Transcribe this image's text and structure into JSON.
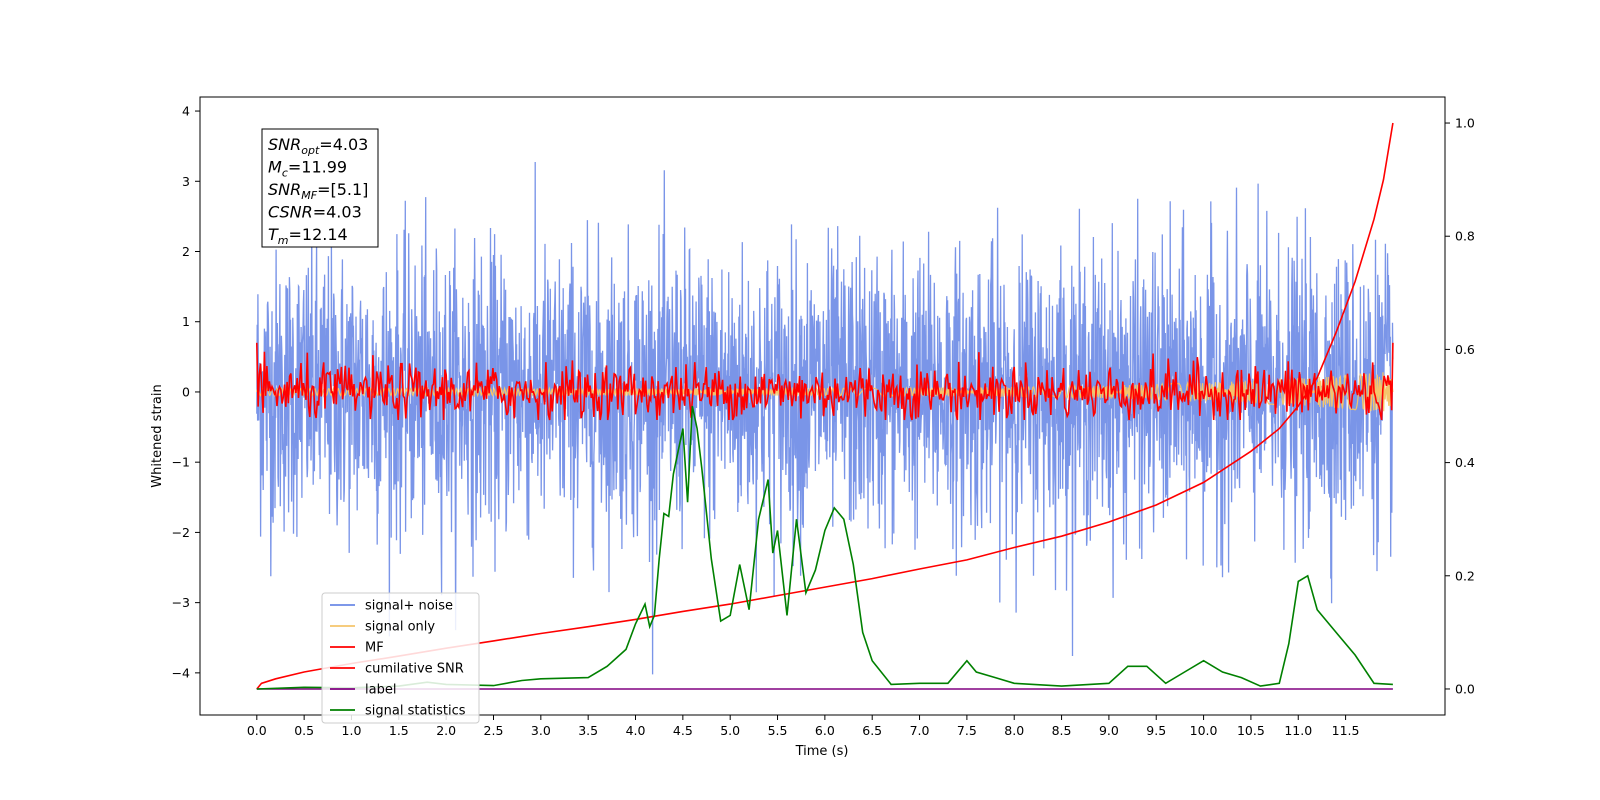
{
  "chart_data": {
    "type": "line",
    "xlabel": "Time (s)",
    "ylabel_left": "Whitened strain",
    "ylabel_right": "",
    "xlim": [
      -0.6,
      12.55
    ],
    "ylim_left": [
      -4.6,
      4.2
    ],
    "ylim_right": [
      -0.046,
      1.046
    ],
    "x_ticks": [
      "0.0",
      "0.5",
      "1.0",
      "1.5",
      "2.0",
      "2.5",
      "3.0",
      "3.5",
      "4.0",
      "4.5",
      "5.0",
      "5.5",
      "6.0",
      "6.5",
      "7.0",
      "7.5",
      "8.0",
      "8.5",
      "9.0",
      "9.5",
      "10.0",
      "10.5",
      "11.0",
      "11.5"
    ],
    "y_ticks_left": [
      "4",
      "3",
      "2",
      "1",
      "0",
      "−1",
      "−2",
      "−3",
      "−4"
    ],
    "y_ticks_right": [
      "1.0",
      "0.8",
      "0.6",
      "0.4",
      "0.2",
      "0.0"
    ],
    "grid": false,
    "legend_position": "lower-left",
    "info_box": {
      "lines": [
        {
          "var": "SNR",
          "sub": "opt",
          "value": "=4.03"
        },
        {
          "var": "M",
          "sub": "c",
          "value": "=11.99"
        },
        {
          "var": "SNR",
          "sub": "MF",
          "value": "=[5.1]"
        },
        {
          "var": "CSNR",
          "sub": "",
          "value": "=4.03"
        },
        {
          "var": "T",
          "sub": "m",
          "value": "=12.14"
        }
      ]
    },
    "series": [
      {
        "name": "signal+ noise",
        "color": "#6b8ae6",
        "axis": "left",
        "style": "noise",
        "x_range": [
          0.0,
          12.0
        ],
        "std": 1.0
      },
      {
        "name": "signal only",
        "color": "#f5c56b",
        "axis": "left",
        "style": "chirp",
        "x_range": [
          0.0,
          12.0
        ],
        "amp_start": 0.05,
        "amp_end": 0.3
      },
      {
        "name": "MF",
        "color": "#ff0000",
        "axis": "left",
        "style": "mf",
        "x_range": [
          0.0,
          12.0
        ],
        "start_value": 0.9,
        "end_value": 1.0,
        "std": 0.2
      },
      {
        "name": "cumilative SNR",
        "color": "#ff0000",
        "axis": "right",
        "x": [
          0.0,
          0.05,
          0.2,
          0.5,
          1.0,
          1.5,
          2.0,
          2.5,
          3.0,
          3.5,
          4.0,
          4.5,
          5.0,
          5.5,
          6.0,
          6.5,
          7.0,
          7.5,
          8.0,
          8.5,
          9.0,
          9.5,
          10.0,
          10.5,
          10.8,
          11.0,
          11.2,
          11.4,
          11.6,
          11.8,
          11.9,
          12.0
        ],
        "y": [
          0.0,
          0.01,
          0.018,
          0.03,
          0.045,
          0.058,
          0.072,
          0.085,
          0.098,
          0.11,
          0.123,
          0.137,
          0.15,
          0.165,
          0.18,
          0.195,
          0.212,
          0.228,
          0.25,
          0.27,
          0.295,
          0.325,
          0.365,
          0.42,
          0.46,
          0.5,
          0.55,
          0.63,
          0.72,
          0.83,
          0.9,
          1.0
        ]
      },
      {
        "name": "label",
        "color": "#800080",
        "axis": "right",
        "x": [
          0.0,
          12.0
        ],
        "y": [
          0.0,
          0.0
        ]
      },
      {
        "name": "signal statistics",
        "color": "#008000",
        "axis": "right",
        "x": [
          0.0,
          0.5,
          1.0,
          1.5,
          1.8,
          2.0,
          2.5,
          2.8,
          3.0,
          3.5,
          3.7,
          3.9,
          4.0,
          4.1,
          4.15,
          4.2,
          4.25,
          4.3,
          4.35,
          4.4,
          4.45,
          4.5,
          4.55,
          4.6,
          4.65,
          4.7,
          4.8,
          4.9,
          5.0,
          5.1,
          5.2,
          5.3,
          5.4,
          5.45,
          5.5,
          5.6,
          5.7,
          5.8,
          5.9,
          6.0,
          6.1,
          6.2,
          6.3,
          6.4,
          6.5,
          6.7,
          7.0,
          7.3,
          7.5,
          7.6,
          7.8,
          8.0,
          8.5,
          9.0,
          9.2,
          9.4,
          9.6,
          9.8,
          10.0,
          10.2,
          10.4,
          10.6,
          10.8,
          10.9,
          11.0,
          11.1,
          11.2,
          11.4,
          11.6,
          11.8,
          12.0
        ],
        "y": [
          0.0,
          0.003,
          0.002,
          0.005,
          0.012,
          0.008,
          0.006,
          0.015,
          0.018,
          0.02,
          0.04,
          0.07,
          0.115,
          0.15,
          0.11,
          0.13,
          0.23,
          0.31,
          0.305,
          0.38,
          0.42,
          0.46,
          0.33,
          0.5,
          0.46,
          0.39,
          0.23,
          0.12,
          0.13,
          0.22,
          0.14,
          0.3,
          0.37,
          0.24,
          0.28,
          0.13,
          0.3,
          0.17,
          0.21,
          0.28,
          0.32,
          0.3,
          0.22,
          0.1,
          0.05,
          0.008,
          0.01,
          0.01,
          0.05,
          0.03,
          0.02,
          0.01,
          0.005,
          0.01,
          0.04,
          0.04,
          0.01,
          0.03,
          0.05,
          0.03,
          0.02,
          0.005,
          0.01,
          0.08,
          0.19,
          0.2,
          0.14,
          0.1,
          0.06,
          0.01,
          0.008
        ]
      }
    ]
  }
}
